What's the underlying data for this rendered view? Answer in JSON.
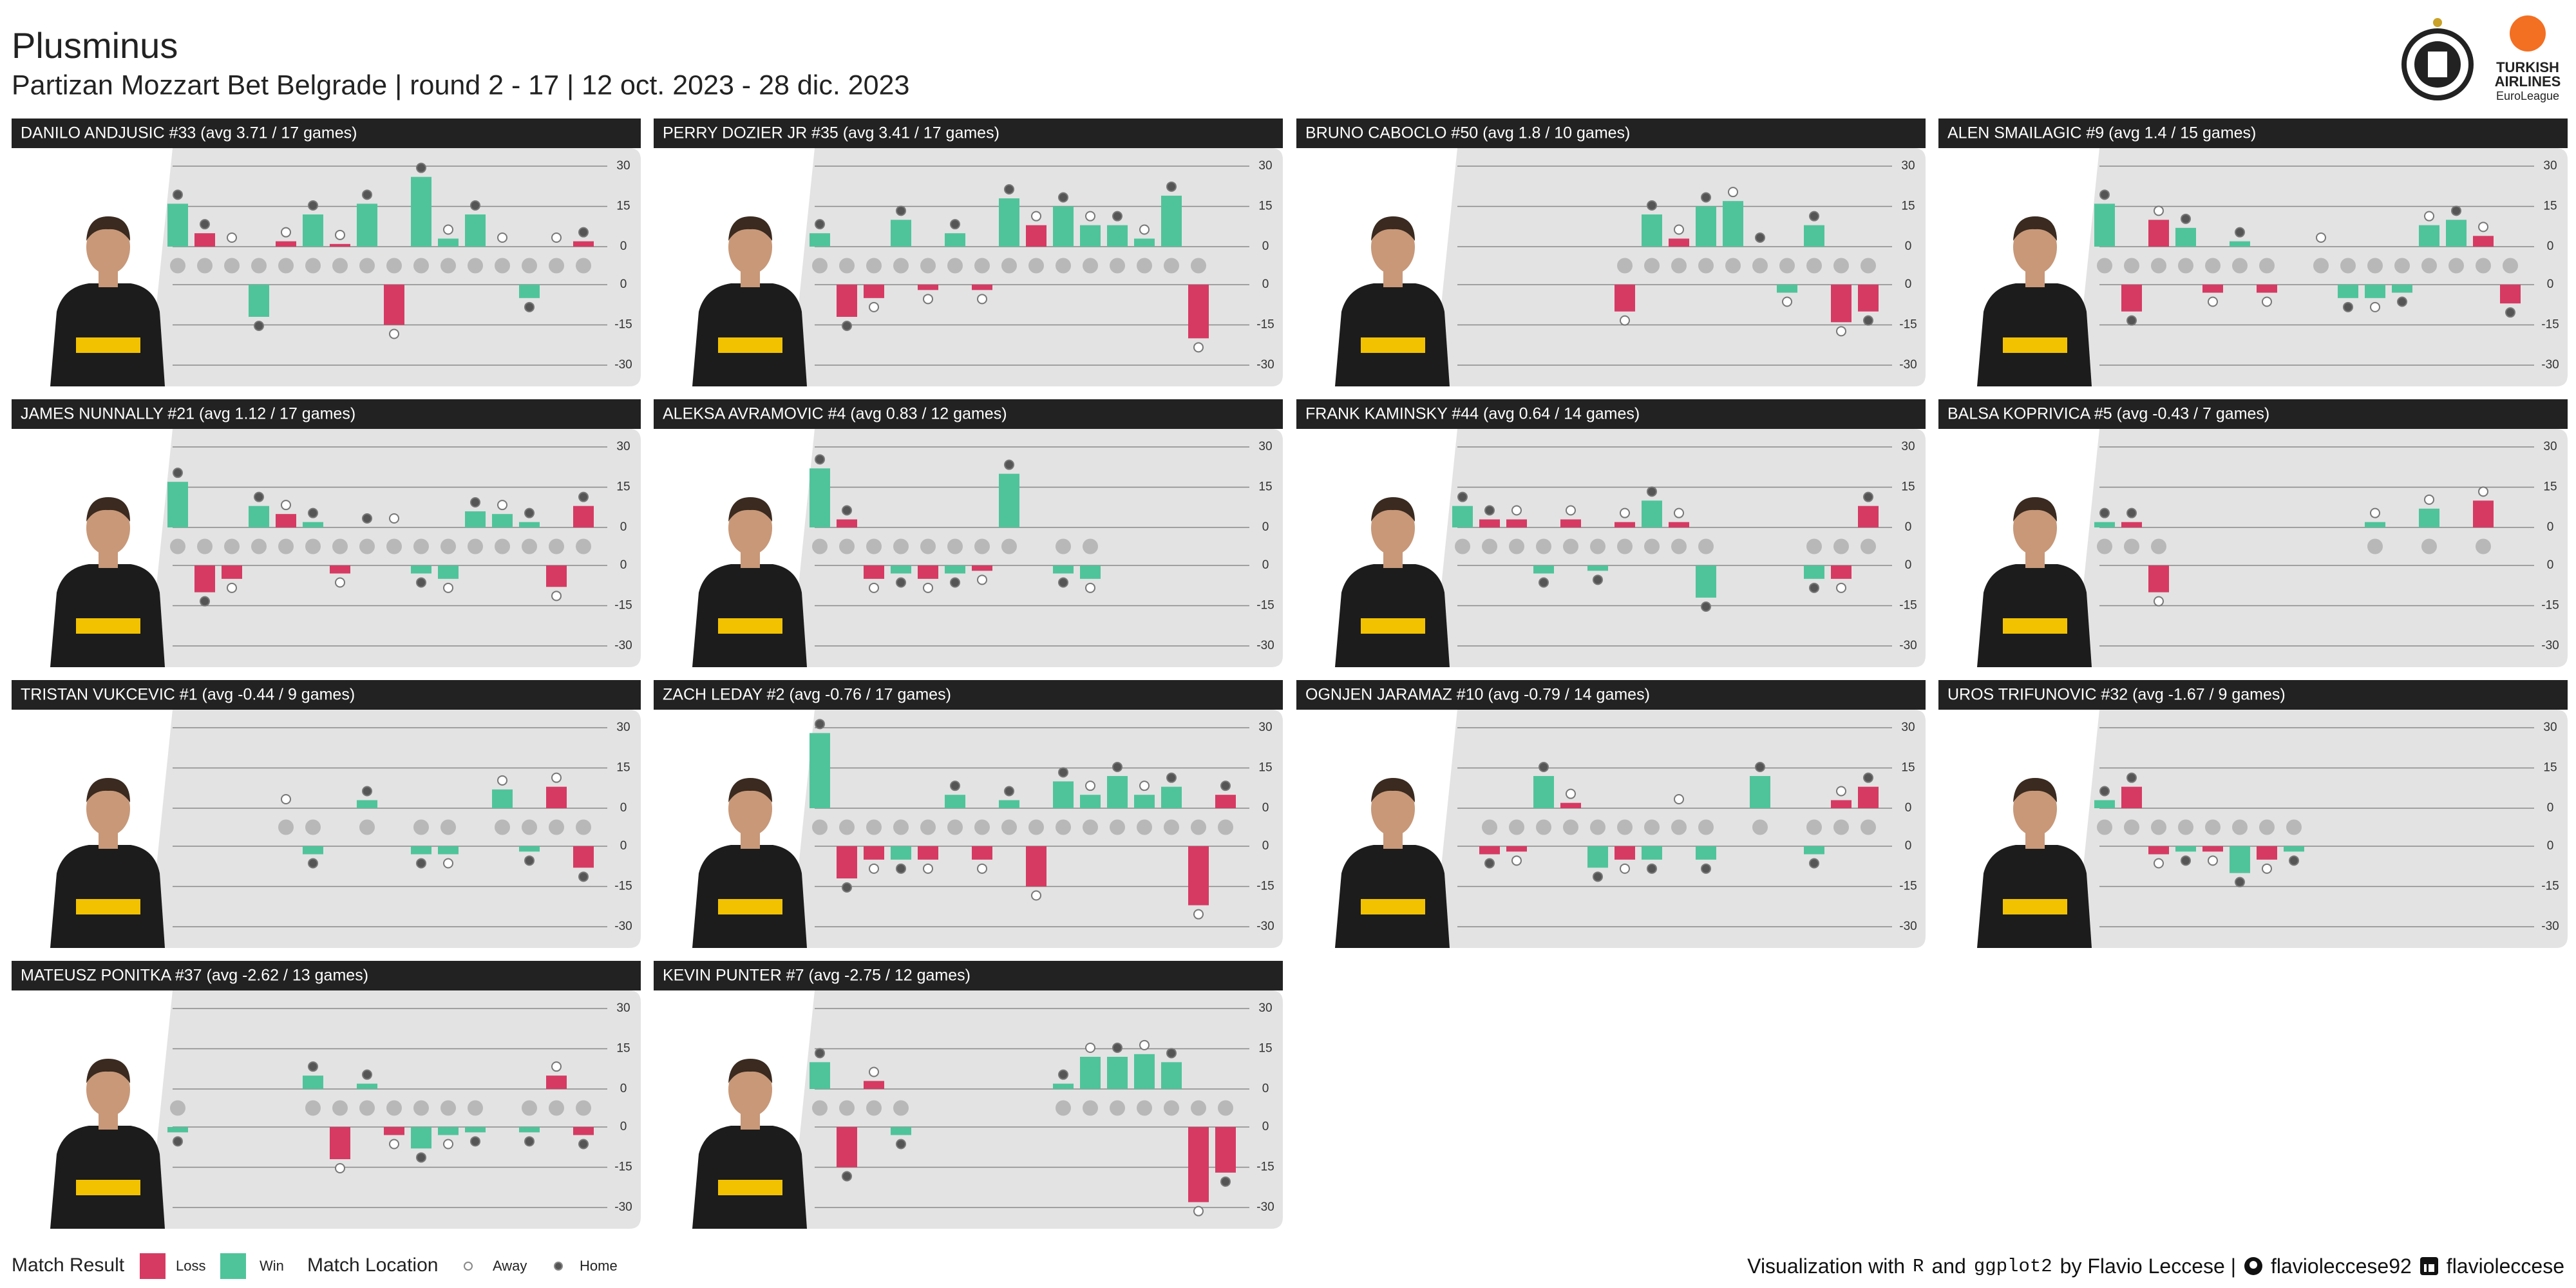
{
  "header": {
    "title": "Plusminus",
    "subtitle": "Partizan Mozzart Bet Belgrade | round 2 - 17 | 12 oct. 2023 - 28 dic. 2023",
    "sponsor": [
      "TURKISH",
      "AIRLINES",
      "EuroLeague"
    ]
  },
  "games": {
    "results": [
      "Win",
      "Loss",
      "Loss",
      "Win",
      "Loss",
      "Win",
      "Loss",
      "Win",
      "Loss",
      "Win",
      "Win",
      "Win",
      "Win",
      "Win",
      "Loss",
      "Loss"
    ],
    "locations": [
      "Home",
      "Home",
      "Away",
      "Home",
      "Away",
      "Home",
      "Away",
      "Home",
      "Away",
      "Home",
      "Away",
      "Home",
      "Away",
      "Home",
      "Away",
      "Home"
    ]
  },
  "legend": {
    "result_title": "Match Result",
    "result_items": [
      "Loss",
      "Win"
    ],
    "location_title": "Match Location",
    "location_items": [
      "Away",
      "Home"
    ],
    "colors": {
      "Loss": "#d63a63",
      "Win": "#4fc49b",
      "Away": "#ffffff",
      "Home": "#555555"
    }
  },
  "chart_data": [
    {
      "type": "bar",
      "title": "DANILO ANDJUSIC #33 (avg 3.71 / 17 games)",
      "values": [
        16,
        5,
        0,
        -12,
        2,
        12,
        1,
        16,
        -15,
        26,
        3,
        12,
        0,
        -5,
        0,
        2
      ],
      "ylim": [
        -30,
        30
      ],
      "yticks_top": [
        30,
        15,
        0
      ],
      "yticks_bottom": [
        0,
        -15,
        -30
      ],
      "grid": true
    },
    {
      "type": "bar",
      "title": "PERRY DOZIER JR #35 (avg 3.41 / 17 games)",
      "values": [
        5,
        -12,
        -5,
        10,
        -2,
        5,
        -2,
        18,
        8,
        15,
        8,
        8,
        3,
        19,
        -20,
        null
      ],
      "ylim": [
        -30,
        30
      ],
      "yticks_top": [
        30,
        15,
        0
      ],
      "yticks_bottom": [
        0,
        -15,
        -30
      ],
      "grid": true
    },
    {
      "type": "bar",
      "title": "BRUNO CABOCLO #50 (avg 1.8 / 10 games)",
      "values": [
        null,
        null,
        null,
        null,
        null,
        null,
        -10,
        12,
        3,
        15,
        17,
        0,
        -3,
        8,
        -14,
        -10
      ],
      "ylim": [
        -30,
        30
      ],
      "yticks_top": [
        30,
        15,
        0
      ],
      "yticks_bottom": [
        0,
        -15,
        -30
      ],
      "grid": true
    },
    {
      "type": "bar",
      "title": "ALEN SMAILAGIC #9 (avg 1.4 / 15 games)",
      "values": [
        16,
        -10,
        10,
        7,
        -3,
        2,
        -3,
        null,
        0,
        -5,
        -5,
        -3,
        8,
        10,
        4,
        -7
      ],
      "ylim": [
        -30,
        30
      ],
      "yticks_top": [
        30,
        15,
        0
      ],
      "yticks_bottom": [
        0,
        -15,
        -30
      ],
      "grid": true
    },
    {
      "type": "bar",
      "title": "JAMES NUNNALLY #21 (avg 1.12 / 17 games)",
      "values": [
        17,
        -10,
        -5,
        8,
        5,
        2,
        -3,
        0,
        0,
        -3,
        -5,
        6,
        5,
        2,
        -8,
        8
      ],
      "ylim": [
        -30,
        30
      ],
      "yticks_top": [
        30,
        15,
        0
      ],
      "yticks_bottom": [
        0,
        -15,
        -30
      ],
      "grid": true
    },
    {
      "type": "bar",
      "title": "ALEKSA AVRAMOVIC #4 (avg 0.83 / 12 games)",
      "values": [
        22,
        3,
        -5,
        -3,
        -5,
        -3,
        -2,
        20,
        null,
        -3,
        -5,
        null,
        null,
        null,
        null,
        null
      ],
      "ylim": [
        -30,
        30
      ],
      "yticks_top": [
        30,
        15,
        0
      ],
      "yticks_bottom": [
        0,
        -15,
        -30
      ],
      "grid": true
    },
    {
      "type": "bar",
      "title": "FRANK KAMINSKY #44 (avg 0.64 / 14 games)",
      "values": [
        8,
        3,
        3,
        -3,
        3,
        -2,
        2,
        10,
        2,
        -12,
        null,
        null,
        null,
        -5,
        -5,
        8
      ],
      "ylim": [
        -30,
        30
      ],
      "yticks_top": [
        30,
        15,
        0
      ],
      "yticks_bottom": [
        0,
        -15,
        -30
      ],
      "grid": true
    },
    {
      "type": "bar",
      "title": "BALSA KOPRIVICA #5 (avg -0.43 / 7 games)",
      "values": [
        2,
        2,
        -10,
        null,
        null,
        null,
        null,
        null,
        null,
        null,
        2,
        null,
        7,
        null,
        10,
        null
      ],
      "ylim": [
        -30,
        30
      ],
      "yticks_top": [
        30,
        15,
        0
      ],
      "yticks_bottom": [
        0,
        -15,
        -30
      ],
      "grid": true
    },
    {
      "type": "bar",
      "title": "TRISTAN VUKCEVIC #1 (avg -0.44 / 9 games)",
      "values": [
        null,
        null,
        null,
        null,
        0,
        -3,
        null,
        3,
        null,
        -3,
        -3,
        null,
        7,
        -2,
        8,
        -8
      ],
      "ylim": [
        -30,
        30
      ],
      "yticks_top": [
        30,
        15,
        0
      ],
      "yticks_bottom": [
        0,
        -15,
        -30
      ],
      "grid": true
    },
    {
      "type": "bar",
      "title": "ZACH LEDAY #2 (avg -0.76 / 17 games)",
      "values": [
        28,
        -12,
        -5,
        -5,
        -5,
        5,
        -5,
        3,
        -15,
        10,
        5,
        12,
        5,
        8,
        -22,
        5
      ],
      "ylim": [
        -30,
        30
      ],
      "yticks_top": [
        30,
        15,
        0
      ],
      "yticks_bottom": [
        0,
        -15,
        -30
      ],
      "grid": true
    },
    {
      "type": "bar",
      "title": "OGNJEN JARAMAZ #10 (avg -0.79 / 14 games)",
      "values": [
        null,
        -3,
        -2,
        12,
        2,
        -8,
        -5,
        -5,
        0,
        -5,
        null,
        12,
        null,
        -3,
        3,
        8
      ],
      "ylim": [
        -30,
        30
      ],
      "yticks_top": [
        30,
        15,
        0
      ],
      "yticks_bottom": [
        0,
        -15,
        -30
      ],
      "grid": true
    },
    {
      "type": "bar",
      "title": "UROS TRIFUNOVIC #32 (avg -1.67 / 9 games)",
      "values": [
        3,
        8,
        -3,
        -2,
        -2,
        -10,
        -5,
        -2,
        null,
        null,
        null,
        null,
        null,
        null,
        null,
        null
      ],
      "ylim": [
        -30,
        30
      ],
      "yticks_top": [
        30,
        15,
        0
      ],
      "yticks_bottom": [
        0,
        -15,
        -30
      ],
      "grid": true
    },
    {
      "type": "bar",
      "title": "MATEUSZ PONITKA #37 (avg -2.62 / 13 games)",
      "values": [
        -2,
        null,
        null,
        null,
        null,
        5,
        -12,
        2,
        -3,
        -8,
        -3,
        -2,
        null,
        -2,
        5,
        -3
      ],
      "ylim": [
        -30,
        30
      ],
      "yticks_top": [
        30,
        15,
        0
      ],
      "yticks_bottom": [
        0,
        -15,
        -30
      ],
      "grid": true
    },
    {
      "type": "bar",
      "title": "KEVIN PUNTER #7 (avg -2.75 / 12 games)",
      "values": [
        10,
        -15,
        3,
        -3,
        null,
        null,
        null,
        null,
        null,
        2,
        12,
        12,
        13,
        10,
        -28,
        -17
      ],
      "ylim": [
        -30,
        30
      ],
      "yticks_top": [
        30,
        15,
        0
      ],
      "yticks_bottom": [
        0,
        -15,
        -30
      ],
      "grid": true
    }
  ],
  "footer": {
    "parts": [
      "Visualization with",
      "R",
      "and",
      "ggplot2",
      "by Flavio Leccese |",
      "flavioleccese92",
      "flavioleccese"
    ]
  }
}
